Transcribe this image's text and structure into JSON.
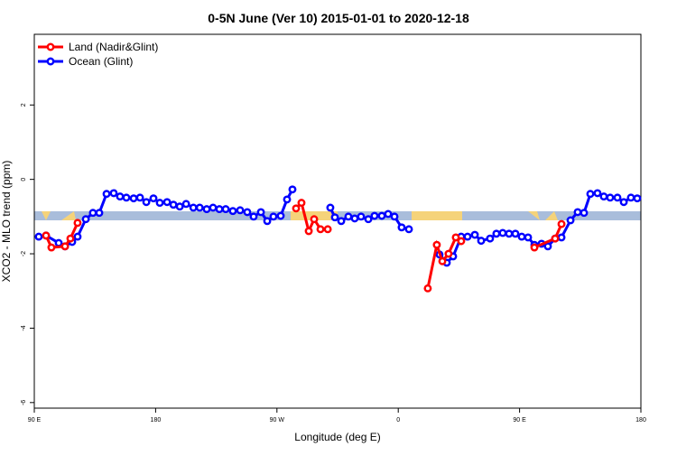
{
  "chart_data": {
    "type": "line",
    "title": "0-5N June (Ver 10)   2015-01-01 to 2020-12-18",
    "x_label": "Longitude (deg E)",
    "y_label": "XCO2 - MLO trend (ppm)",
    "xlim": [
      90,
      540
    ],
    "xticks": [
      {
        "value": 90,
        "label": "90 E"
      },
      {
        "value": 180,
        "label": "180"
      },
      {
        "value": 270,
        "label": "90 W"
      },
      {
        "value": 360,
        "label": "0"
      },
      {
        "value": 450,
        "label": "90 E"
      },
      {
        "value": 540,
        "label": "180"
      }
    ],
    "ylim": [
      -6.15,
      3.9
    ],
    "yticks": [
      -6,
      -4,
      -2,
      0,
      2
    ],
    "legend": "top-left",
    "series": [
      {
        "name": "Ocean (Glint)",
        "color": "#0000ff",
        "x": [
          93.3,
          98.7,
          108.1,
          112.8,
          118.1,
          122.1,
          128.2,
          133.5,
          138.2,
          143.6,
          148.9,
          153.6,
          158.3,
          163.7,
          168.4,
          173.1,
          178.4,
          183.1,
          188.5,
          193.2,
          197.9,
          202.6,
          208.0,
          212.7,
          217.9,
          222.6,
          227.3,
          232.0,
          237.3,
          242.7,
          248.0,
          252.7,
          258.1,
          262.8,
          267.4,
          272.8,
          277.5,
          281.5,
          295.0,
          309.6,
          313.0,
          317.7,
          323.0,
          327.7,
          332.4,
          337.8,
          342.4,
          347.8,
          352.5,
          357.2,
          362.5,
          367.9,
          380.0,
          390.6,
          396.0,
          400.7,
          406.7,
          411.4,
          416.8,
          421.5,
          428.1,
          432.8,
          437.5,
          442.2,
          446.9,
          451.6,
          456.3,
          461.0,
          466.3,
          471.0,
          476.4,
          481.1,
          487.8,
          493.1,
          497.8,
          502.5,
          507.8,
          512.5,
          517.2,
          522.6,
          527.3,
          532.6,
          537.3
        ],
        "values": [
          -1.54,
          -1.51,
          -1.71,
          -1.8,
          -1.68,
          -1.54,
          -1.07,
          -0.9,
          -0.9,
          -0.39,
          -0.37,
          -0.46,
          -0.49,
          -0.51,
          -0.49,
          -0.61,
          -0.51,
          -0.63,
          -0.61,
          -0.68,
          -0.73,
          -0.66,
          -0.76,
          -0.76,
          -0.8,
          -0.76,
          -0.8,
          -0.8,
          -0.85,
          -0.83,
          -0.88,
          -1.0,
          -0.88,
          -1.12,
          -1.0,
          -0.98,
          -0.54,
          -0.27,
          null,
          -0.76,
          -1.02,
          -1.12,
          -1.0,
          -1.05,
          -1.0,
          -1.07,
          -0.98,
          -0.98,
          -0.93,
          -1.0,
          -1.29,
          -1.34,
          null,
          -2.02,
          -2.24,
          -2.07,
          -1.54,
          -1.54,
          -1.49,
          -1.65,
          -1.59,
          -1.46,
          -1.44,
          -1.46,
          -1.46,
          -1.54,
          -1.56,
          -1.76,
          -1.73,
          -1.8,
          -1.59,
          -1.56,
          -1.1,
          -0.88,
          -0.9,
          -0.39,
          -0.37,
          -0.46,
          -0.49,
          -0.49,
          -0.61,
          -0.49,
          -0.51
        ]
      },
      {
        "name": "Land (Nadir&Glint)",
        "color": "#ff0000",
        "x": [
          98.7,
          102.7,
          112.8,
          116.8,
          122.1,
          200.0,
          284.2,
          288.2,
          293.6,
          297.6,
          302.3,
          307.7,
          350.0,
          381.9,
          388.6,
          392.7,
          397.3,
          402.7,
          406.7,
          440.0,
          461.0,
          476.4,
          481.1
        ],
        "values": [
          -1.51,
          -1.83,
          -1.8,
          -1.59,
          -1.17,
          null,
          -0.78,
          -0.63,
          -1.39,
          -1.07,
          -1.34,
          -1.34,
          null,
          -2.93,
          -1.76,
          -2.2,
          -2.0,
          -1.56,
          -1.66,
          null,
          -1.83,
          -1.59,
          -1.2
        ]
      }
    ]
  }
}
